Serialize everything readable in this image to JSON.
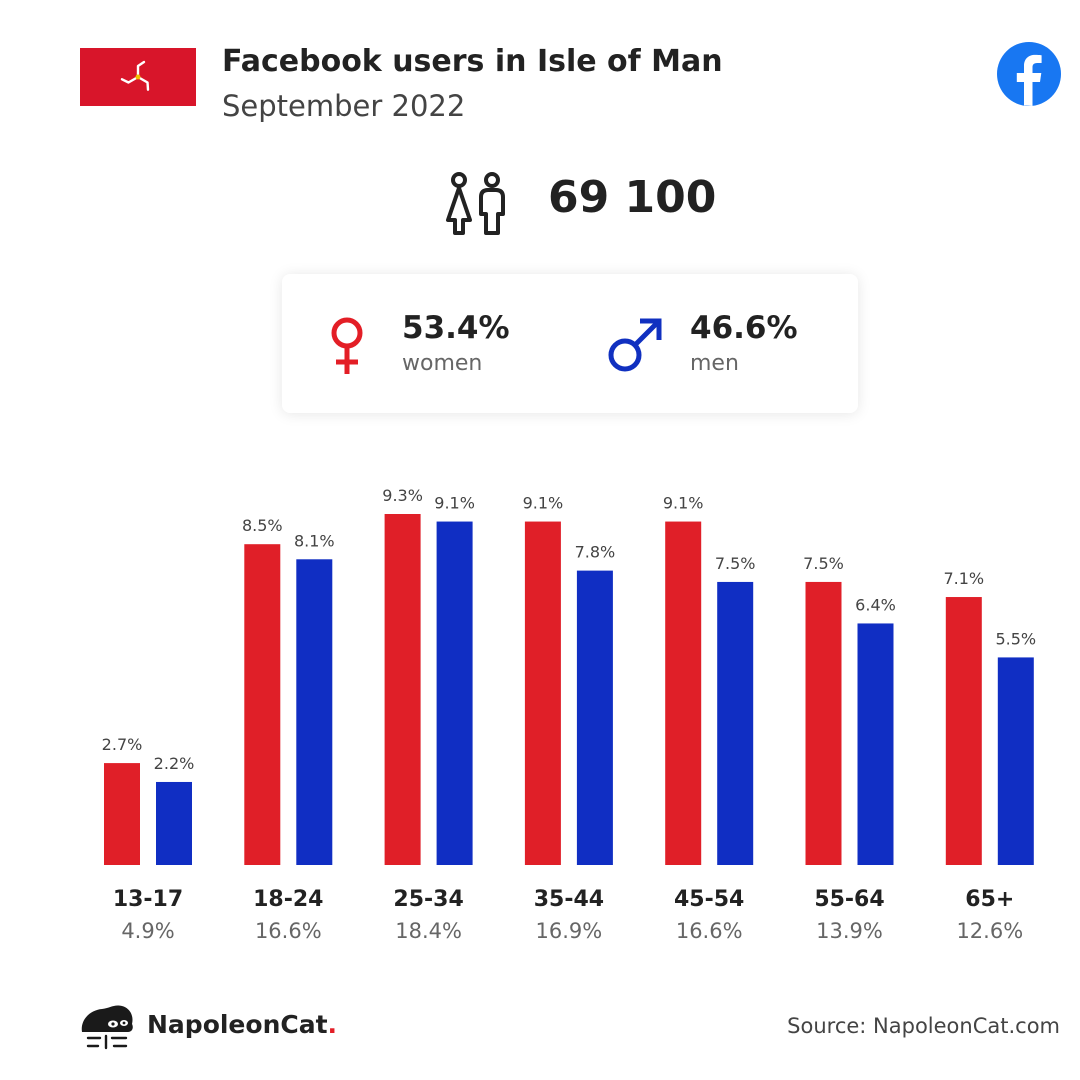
{
  "header": {
    "title": "Facebook users in Isle of Man",
    "subtitle": "September 2022"
  },
  "flag": {
    "country": "Isle of Man",
    "icon": "isle-of-man-flag-triskelion",
    "background": "#d8152a"
  },
  "total_users": {
    "value": "69 100",
    "icon": "people-icon"
  },
  "gender": {
    "women": {
      "value": "53.4%",
      "label": "women",
      "icon": "female-symbol-icon",
      "color": "#e31e26"
    },
    "men": {
      "value": "46.6%",
      "label": "men",
      "icon": "male-symbol-icon",
      "color": "#1030c0"
    }
  },
  "colors": {
    "women": "#e01f28",
    "men": "#102ec3",
    "facebook": "#1877f2"
  },
  "chart_data": {
    "type": "bar",
    "categories": [
      "13-17",
      "18-24",
      "25-34",
      "35-44",
      "45-54",
      "55-64",
      "65+"
    ],
    "category_totals": [
      "4.9%",
      "16.6%",
      "18.4%",
      "16.9%",
      "16.6%",
      "13.9%",
      "12.6%"
    ],
    "series": [
      {
        "values": [
          2.7,
          8.5,
          9.3,
          9.1,
          9.1,
          7.5,
          7.1
        ],
        "labels": [
          "2.7%",
          "8.5%",
          "9.3%",
          "9.1%",
          "9.1%",
          "7.5%",
          "7.1%"
        ],
        "color": "#e01f28"
      },
      {
        "values": [
          2.2,
          8.1,
          9.1,
          7.8,
          7.5,
          6.4,
          5.5
        ],
        "labels": [
          "2.2%",
          "8.1%",
          "9.1%",
          "7.8%",
          "7.5%",
          "6.4%",
          "5.5%"
        ],
        "color": "#102ec3"
      }
    ],
    "ylim": [
      0,
      9.3
    ],
    "grid": false
  },
  "footer": {
    "brand_name": "NapoleonCat",
    "brand_dot": ".",
    "brand_icon": "napoleoncat-logo-icon",
    "source": "Source: NapoleonCat.com"
  }
}
